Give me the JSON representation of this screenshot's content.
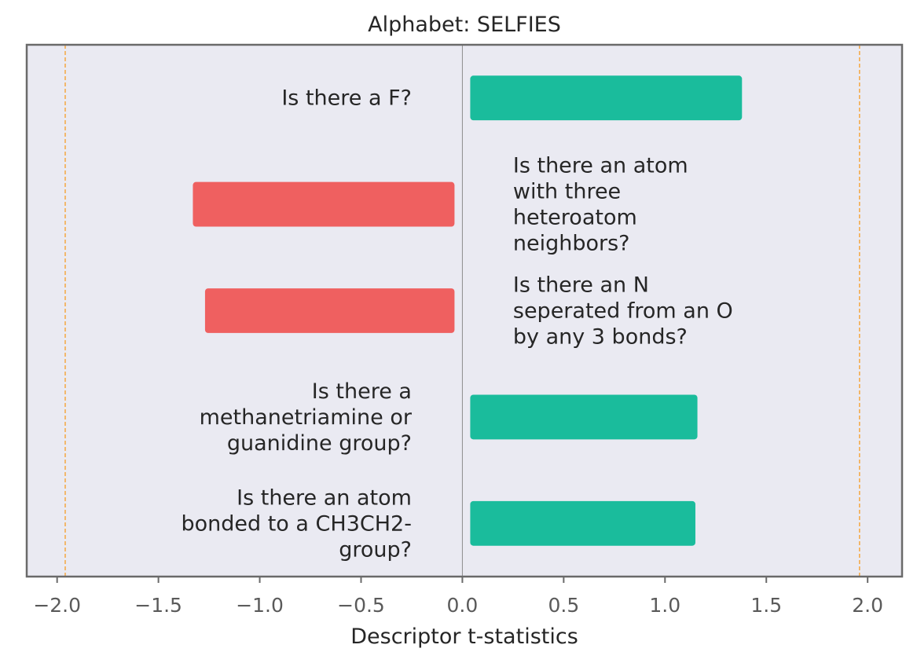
{
  "chart_data": {
    "type": "bar",
    "orientation": "horizontal",
    "title": "Alphabet: SELFIES",
    "xlabel": "Descriptor t-statistics",
    "ylabel": "",
    "xlim": [
      -2.15,
      2.17
    ],
    "xticks": [
      -2.0,
      -1.5,
      -1.0,
      -0.5,
      0.0,
      0.5,
      1.0,
      1.5,
      2.0
    ],
    "xtick_labels": [
      "−2.0",
      "−1.5",
      "−1.0",
      "−0.5",
      "0.0",
      "0.5",
      "1.0",
      "1.5",
      "2.0"
    ],
    "significance_lines": [
      -1.96,
      1.96
    ],
    "bars": [
      {
        "label": [
          "Is there a F?"
        ],
        "value": 1.38
      },
      {
        "label": [
          "Is there an atom",
          "with three",
          "heteroatom",
          "neighbors?"
        ],
        "value": -1.33
      },
      {
        "label": [
          "Is there an N",
          "seperated from an O",
          "by any 3 bonds?"
        ],
        "value": -1.27
      },
      {
        "label": [
          "Is there a",
          "methanetriamine or",
          "guanidine group?"
        ],
        "value": 1.16
      },
      {
        "label": [
          "Is there an atom",
          "bonded to a CH3CH2-",
          "group?"
        ],
        "value": 1.15
      }
    ],
    "grid": false,
    "colors": {
      "positive": "#1abc9c",
      "negative": "#ef6060",
      "background": "#eaeaf2",
      "frame": "#6a6a6a",
      "zero_line": "#8c8c8c",
      "significance_line": "#f5a742"
    }
  }
}
